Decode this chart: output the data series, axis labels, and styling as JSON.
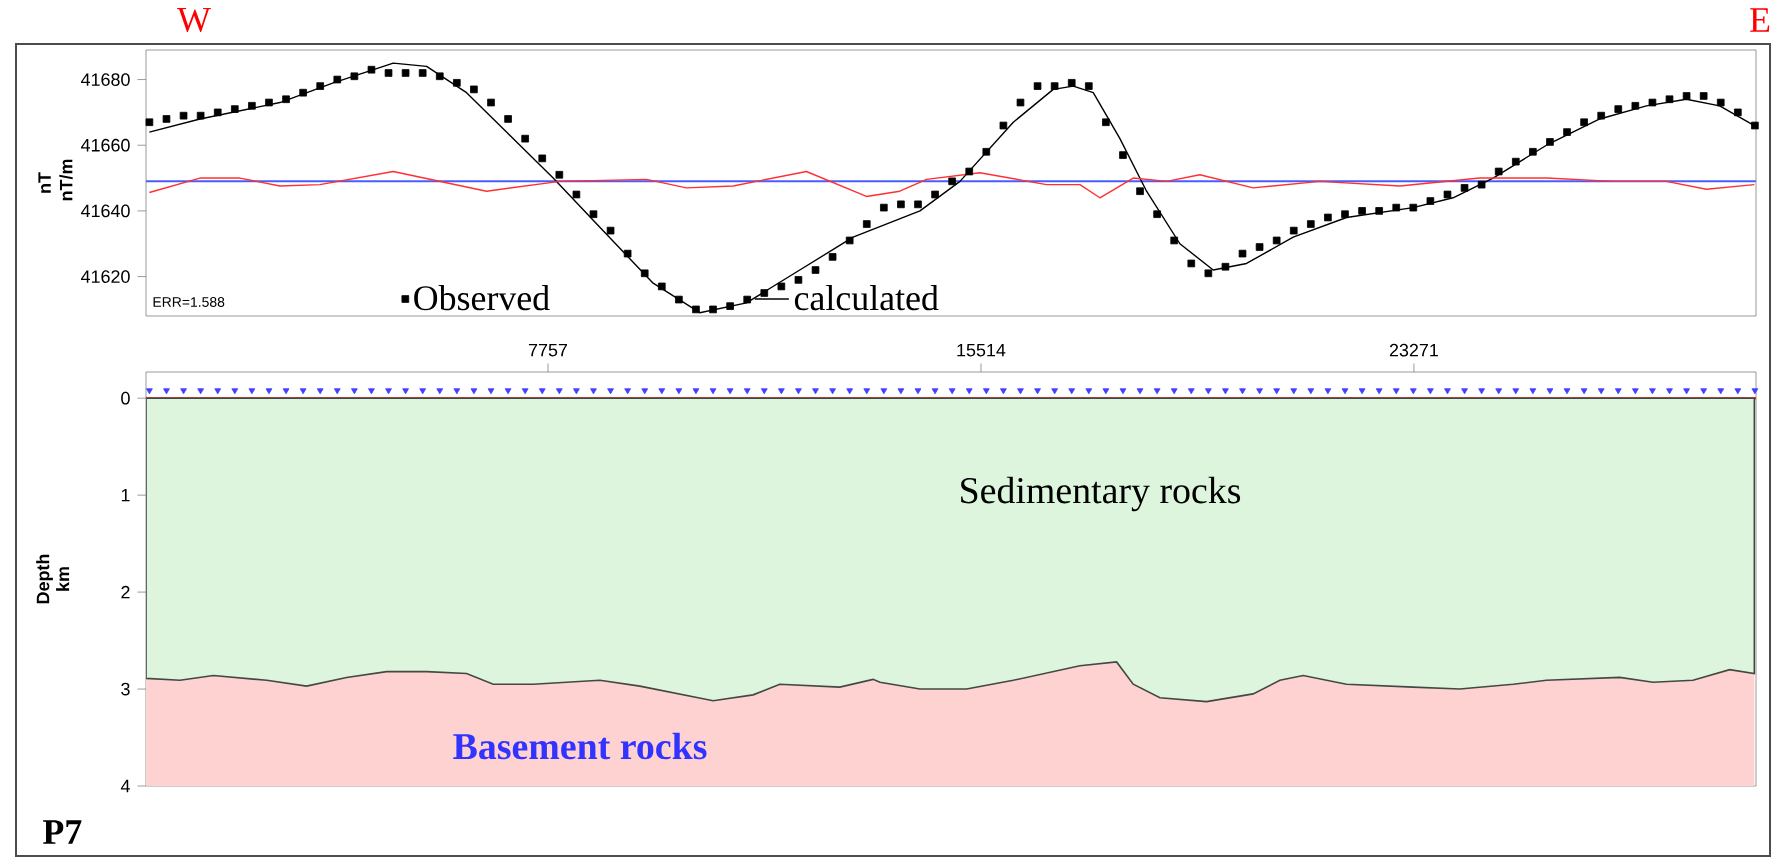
{
  "chart_data": [
    {
      "type": "scatter",
      "ylabel": "nT",
      "xlim": [
        555,
        29400
      ],
      "ylim": [
        41608,
        41689
      ],
      "yticks": [
        41620,
        41640,
        41660,
        41680
      ],
      "tick_labels": "y",
      "legend": "bottom",
      "annotations": [
        "W",
        "E",
        "ERR=1.588",
        "nT/m"
      ],
      "ref_lines": [
        {
          "axis": "y",
          "value": 41649,
          "color": "#4a5cff"
        }
      ],
      "series": [
        {
          "name": "Observed",
          "marker": "square",
          "color": "#000000",
          "x": [
            616,
            922,
            1228,
            1534,
            1840,
            2146,
            2452,
            2758,
            3064,
            3370,
            3676,
            3982,
            4288,
            4594,
            4900,
            5206,
            5512,
            5818,
            6124,
            6430,
            6736,
            7042,
            7348,
            7654,
            7960,
            8266,
            8572,
            8878,
            9184,
            9490,
            9796,
            10102,
            10408,
            10714,
            11020,
            11326,
            11632,
            11938,
            12244,
            12550,
            12856,
            13162,
            13468,
            13774,
            14080,
            14386,
            14692,
            14998,
            15304,
            15610,
            15916,
            16222,
            16528,
            16834,
            17140,
            17446,
            17752,
            18058,
            18364,
            18670,
            18976,
            19282,
            19588,
            19894,
            20200,
            20506,
            20812,
            21118,
            21424,
            21730,
            22036,
            22342,
            22648,
            22954,
            23260,
            23566,
            23872,
            24178,
            24484,
            24790,
            25096,
            25402,
            25708,
            26014,
            26320,
            26626,
            26932,
            27238,
            27544,
            27850,
            28156,
            28462,
            28768,
            29074,
            29380
          ],
          "values": [
            41667,
            41668,
            41669,
            41669,
            41670,
            41671,
            41672,
            41673,
            41674,
            41676,
            41678,
            41680,
            41681,
            41683,
            41682,
            41682,
            41682,
            41681,
            41679,
            41677,
            41673,
            41668,
            41662,
            41656,
            41651,
            41645,
            41639,
            41634,
            41627,
            41621,
            41617,
            41613,
            41610,
            41610,
            41611,
            41613,
            41615,
            41617,
            41619,
            41622,
            41626,
            41631,
            41636,
            41641,
            41642,
            41642,
            41645,
            41649,
            41652,
            41658,
            41666,
            41673,
            41678,
            41678,
            41679,
            41678,
            41667,
            41657,
            41646,
            41639,
            41631,
            41624,
            41621,
            41623,
            41627,
            41629,
            41631,
            41634,
            41636,
            41638,
            41639,
            41640,
            41640,
            41641,
            41641,
            41643,
            41645,
            41647,
            41648,
            41652,
            41655,
            41658,
            41661,
            41664,
            41667,
            41669,
            41671,
            41672,
            41673,
            41674,
            41675,
            41675,
            41673,
            41670,
            41666
          ]
        },
        {
          "name": "calculated",
          "type": "line",
          "color": "#000000",
          "x": [
            615,
            1522,
            2955,
            3910,
            4985,
            5582,
            6298,
            7014,
            7850,
            8686,
            9641,
            10477,
            11313,
            12268,
            13223,
            14421,
            15138,
            16093,
            16809,
            17168,
            17526,
            18004,
            18481,
            19078,
            19675,
            20272,
            21108,
            22063,
            23257,
            23973,
            24690,
            25645,
            26600,
            27436,
            28152,
            28749,
            29370
          ],
          "values": [
            41664,
            41668,
            41673,
            41679,
            41685,
            41684,
            41676,
            41664,
            41650,
            41635,
            41618,
            41609,
            41612,
            41622,
            41632,
            41640,
            41649,
            41667,
            41677,
            41678,
            41676,
            41662,
            41646,
            41630,
            41622,
            41624,
            41632,
            41638,
            41641,
            41644,
            41650,
            41660,
            41668,
            41672,
            41674,
            41672,
            41666
          ]
        },
        {
          "type": "line",
          "color": "#ff3030",
          "x": [
            615,
            1522,
            2238,
            2955,
            3671,
            4985,
            6656,
            7970,
            9522,
            10238,
            11074,
            12387,
            13462,
            14059,
            14541,
            15496,
            16690,
            17287,
            17645,
            18242,
            18839,
            19436,
            20391,
            21585,
            23018,
            24451,
            25645,
            26839,
            27794,
            28511,
            29370
          ],
          "values": [
            41645.6,
            41650,
            41650,
            41647.6,
            41648,
            41652,
            41646,
            41649,
            41649.6,
            41647,
            41647.6,
            41652,
            41644.4,
            41646,
            41649.6,
            41651.6,
            41648,
            41648,
            41644,
            41650,
            41649,
            41651,
            41647,
            41649,
            41647.6,
            41650,
            41650,
            41649,
            41649,
            41646.6,
            41648
          ]
        }
      ]
    },
    {
      "type": "area",
      "stacked": true,
      "ylabel": "Depth km",
      "xlim": [
        555,
        29400
      ],
      "xticks": [
        7757,
        15514,
        23271
      ],
      "ylim": [
        4,
        -0.27
      ],
      "yticks": [
        0,
        1,
        2,
        3,
        4
      ],
      "x": [
        555,
        1164,
        1761,
        2716,
        3432,
        4149,
        4865,
        5582,
        6298,
        6776,
        7492,
        8686,
        9402,
        10716,
        11432,
        11910,
        12984,
        13581,
        13705,
        14421,
        15257,
        16093,
        17287,
        17944,
        18242,
        18720,
        19556,
        20391,
        20869,
        21287,
        22063,
        23257,
        24093,
        25048,
        25645,
        26958,
        27555,
        28271,
        28928,
        29370
      ],
      "annotations": [
        "P7",
        "Sedimentary rocks",
        "Basement rocks"
      ],
      "ref_lines": [
        {
          "axis": "y",
          "value": 0,
          "color": "#ff0000"
        }
      ],
      "series": [
        {
          "color": "#dcf5dc",
          "values": [
            2.89,
            2.91,
            2.86,
            2.91,
            2.97,
            2.88,
            2.82,
            2.82,
            2.84,
            2.95,
            2.95,
            2.91,
            2.97,
            3.12,
            3.06,
            2.95,
            2.98,
            2.9,
            2.93,
            3.0,
            3.0,
            2.91,
            2.76,
            2.72,
            2.95,
            3.09,
            3.13,
            3.05,
            2.91,
            2.86,
            2.95,
            2.98,
            3.0,
            2.95,
            2.91,
            2.88,
            2.93,
            2.91,
            2.8,
            2.84
          ]
        },
        {
          "color": "#ffd2d2",
          "values": [
            1.11,
            1.09,
            1.14,
            1.09,
            1.03,
            1.12,
            1.18,
            1.18,
            1.16,
            1.05,
            1.05,
            1.09,
            1.03,
            0.88,
            0.94,
            1.05,
            1.02,
            1.1,
            1.07,
            1.0,
            1.0,
            1.09,
            1.24,
            1.28,
            1.05,
            0.91,
            0.87,
            0.95,
            1.09,
            1.14,
            1.05,
            1.02,
            1.0,
            1.05,
            1.09,
            1.12,
            1.07,
            1.09,
            1.2,
            1.16
          ]
        },
        {
          "type": "scatter",
          "marker": "triangle",
          "color": "#4040ff",
          "x": [
            616,
            922,
            1228,
            1534,
            1840,
            2146,
            2452,
            2758,
            3064,
            3370,
            3676,
            3982,
            4288,
            4594,
            4900,
            5206,
            5512,
            5818,
            6124,
            6430,
            6736,
            7042,
            7348,
            7654,
            7960,
            8266,
            8572,
            8878,
            9184,
            9490,
            9796,
            10102,
            10408,
            10714,
            11020,
            11326,
            11632,
            11938,
            12244,
            12550,
            12856,
            13162,
            13468,
            13774,
            14080,
            14386,
            14692,
            14998,
            15304,
            15610,
            15916,
            16222,
            16528,
            16834,
            17140,
            17446,
            17752,
            18058,
            18364,
            18670,
            18976,
            19282,
            19588,
            19894,
            20200,
            20506,
            20812,
            21118,
            21424,
            21730,
            22036,
            22342,
            22648,
            22954,
            23260,
            23566,
            23872,
            24178,
            24484,
            24790,
            25096,
            25402,
            25708,
            26014,
            26320,
            26626,
            26932,
            27238,
            27544,
            27850,
            28156,
            28462,
            28768,
            29074,
            29380
          ],
          "values": [
            -0.08,
            -0.08,
            -0.08,
            -0.08,
            -0.08,
            -0.08,
            -0.08,
            -0.08,
            -0.08,
            -0.08,
            -0.08,
            -0.08,
            -0.08,
            -0.08,
            -0.08,
            -0.08,
            -0.08,
            -0.08,
            -0.08,
            -0.08,
            -0.08,
            -0.08,
            -0.08,
            -0.08,
            -0.08,
            -0.08,
            -0.08,
            -0.08,
            -0.08,
            -0.08,
            -0.08,
            -0.08,
            -0.08,
            -0.08,
            -0.08,
            -0.08,
            -0.08,
            -0.08,
            -0.08,
            -0.08,
            -0.08,
            -0.08,
            -0.08,
            -0.08,
            -0.08,
            -0.08,
            -0.08,
            -0.08,
            -0.08,
            -0.08,
            -0.08,
            -0.08,
            -0.08,
            -0.08,
            -0.08,
            -0.08,
            -0.08,
            -0.08,
            -0.08,
            -0.08,
            -0.08,
            -0.08,
            -0.08,
            -0.08,
            -0.08,
            -0.08,
            -0.08,
            -0.08,
            -0.08,
            -0.08,
            -0.08,
            -0.08,
            -0.08,
            -0.08,
            -0.08,
            -0.08,
            -0.08,
            -0.08,
            -0.08,
            -0.08,
            -0.08,
            -0.08,
            -0.08,
            -0.08,
            -0.08,
            -0.08,
            -0.08,
            -0.08,
            -0.08,
            -0.08,
            -0.08,
            -0.08,
            -0.08,
            -0.08,
            -0.08
          ]
        }
      ]
    }
  ]
}
